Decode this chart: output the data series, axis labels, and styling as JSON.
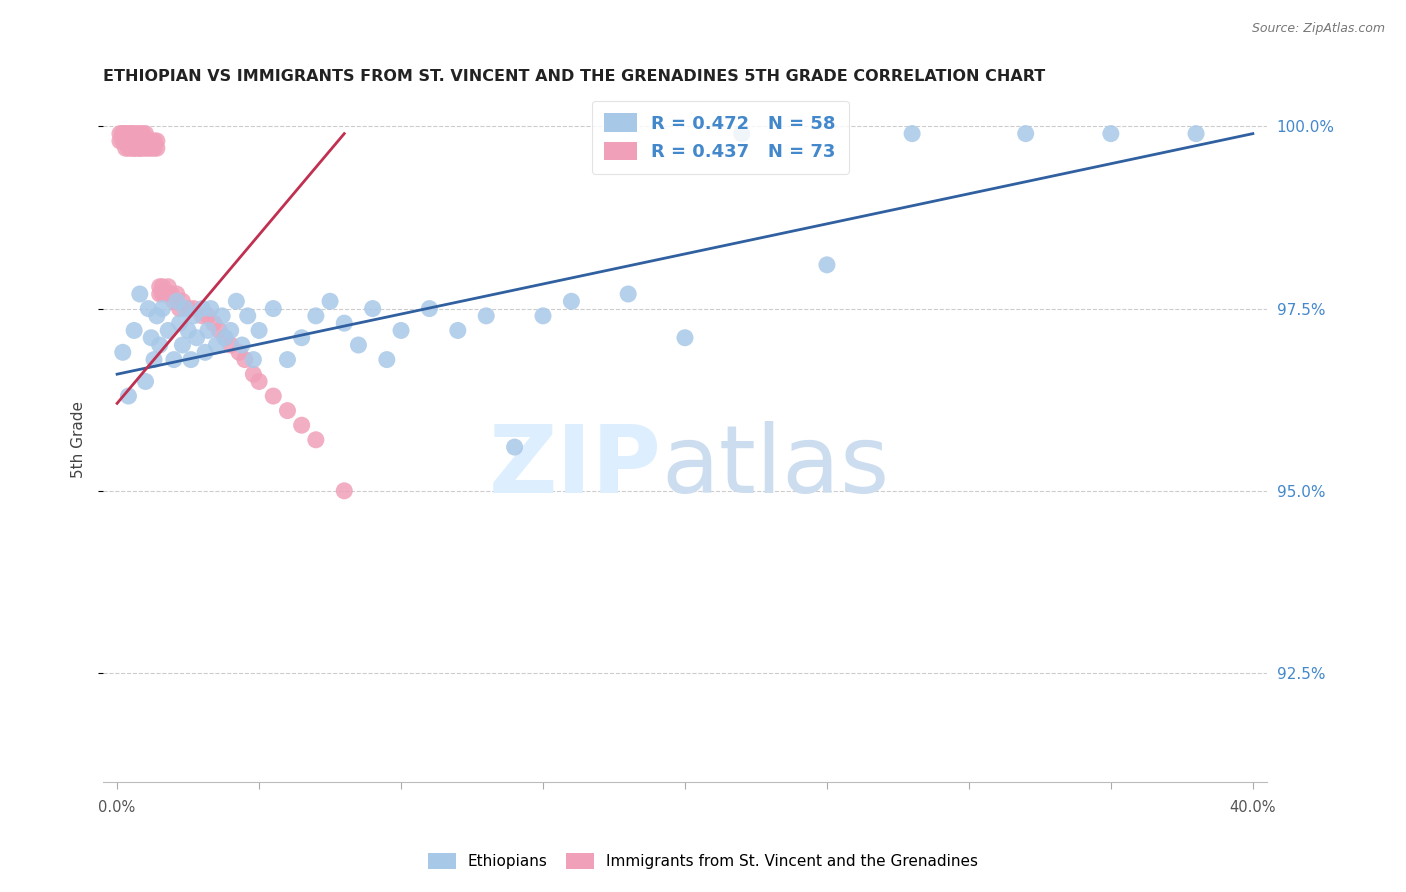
{
  "title": "ETHIOPIAN VS IMMIGRANTS FROM ST. VINCENT AND THE GRENADINES 5TH GRADE CORRELATION CHART",
  "source": "Source: ZipAtlas.com",
  "ylabel": "5th Grade",
  "xlim": [
    -0.005,
    0.405
  ],
  "ylim": [
    0.91,
    1.004
  ],
  "ytick_values": [
    0.925,
    0.95,
    0.975,
    1.0
  ],
  "ytick_labels": [
    "92.5%",
    "95.0%",
    "97.5%",
    "100.0%"
  ],
  "xtick_positions": [
    0.0,
    0.05,
    0.1,
    0.15,
    0.2,
    0.25,
    0.3,
    0.35,
    0.4
  ],
  "R_blue": 0.472,
  "N_blue": 58,
  "R_pink": 0.437,
  "N_pink": 73,
  "blue_color": "#a8c8e8",
  "pink_color": "#f0a0b8",
  "line_blue_color": "#3060a0",
  "line_pink_color": "#c03050",
  "blue_scatter_x": [
    0.002,
    0.004,
    0.006,
    0.008,
    0.01,
    0.011,
    0.012,
    0.013,
    0.014,
    0.015,
    0.016,
    0.018,
    0.02,
    0.021,
    0.022,
    0.023,
    0.024,
    0.025,
    0.026,
    0.027,
    0.028,
    0.03,
    0.031,
    0.032,
    0.033,
    0.035,
    0.037,
    0.038,
    0.04,
    0.042,
    0.044,
    0.046,
    0.048,
    0.05,
    0.055,
    0.06,
    0.065,
    0.07,
    0.075,
    0.08,
    0.085,
    0.09,
    0.095,
    0.1,
    0.11,
    0.12,
    0.13,
    0.14,
    0.15,
    0.16,
    0.18,
    0.2,
    0.22,
    0.25,
    0.28,
    0.32,
    0.35,
    0.38
  ],
  "blue_scatter_y": [
    0.969,
    0.963,
    0.972,
    0.977,
    0.965,
    0.975,
    0.971,
    0.968,
    0.974,
    0.97,
    0.975,
    0.972,
    0.968,
    0.976,
    0.973,
    0.97,
    0.975,
    0.972,
    0.968,
    0.974,
    0.971,
    0.975,
    0.969,
    0.972,
    0.975,
    0.97,
    0.974,
    0.971,
    0.972,
    0.976,
    0.97,
    0.974,
    0.968,
    0.972,
    0.975,
    0.968,
    0.971,
    0.974,
    0.976,
    0.973,
    0.97,
    0.975,
    0.968,
    0.972,
    0.975,
    0.972,
    0.974,
    0.956,
    0.974,
    0.976,
    0.977,
    0.971,
    0.999,
    0.981,
    0.999,
    0.999,
    0.999,
    0.999
  ],
  "pink_scatter_x": [
    0.001,
    0.001,
    0.002,
    0.002,
    0.002,
    0.003,
    0.003,
    0.003,
    0.003,
    0.003,
    0.004,
    0.004,
    0.004,
    0.004,
    0.005,
    0.005,
    0.005,
    0.005,
    0.005,
    0.006,
    0.006,
    0.006,
    0.006,
    0.007,
    0.007,
    0.007,
    0.007,
    0.008,
    0.008,
    0.008,
    0.008,
    0.009,
    0.009,
    0.009,
    0.01,
    0.01,
    0.01,
    0.011,
    0.011,
    0.012,
    0.012,
    0.013,
    0.013,
    0.014,
    0.014,
    0.015,
    0.015,
    0.016,
    0.016,
    0.017,
    0.018,
    0.019,
    0.02,
    0.021,
    0.022,
    0.023,
    0.025,
    0.027,
    0.03,
    0.032,
    0.034,
    0.036,
    0.038,
    0.04,
    0.043,
    0.045,
    0.048,
    0.05,
    0.055,
    0.06,
    0.065,
    0.07,
    0.08
  ],
  "pink_scatter_y": [
    0.999,
    0.998,
    0.999,
    0.998,
    0.999,
    0.998,
    0.999,
    0.999,
    0.998,
    0.997,
    0.998,
    0.999,
    0.997,
    0.998,
    0.999,
    0.998,
    0.997,
    0.999,
    0.998,
    0.997,
    0.999,
    0.998,
    0.997,
    0.998,
    0.999,
    0.997,
    0.998,
    0.997,
    0.998,
    0.999,
    0.997,
    0.998,
    0.997,
    0.999,
    0.998,
    0.997,
    0.999,
    0.997,
    0.998,
    0.997,
    0.998,
    0.997,
    0.998,
    0.997,
    0.998,
    0.977,
    0.978,
    0.977,
    0.978,
    0.977,
    0.978,
    0.977,
    0.976,
    0.977,
    0.975,
    0.976,
    0.975,
    0.975,
    0.974,
    0.974,
    0.973,
    0.972,
    0.971,
    0.97,
    0.969,
    0.968,
    0.966,
    0.965,
    0.963,
    0.961,
    0.959,
    0.957,
    0.95
  ],
  "blue_line_x": [
    0.0,
    0.4
  ],
  "blue_line_y": [
    0.966,
    0.999
  ],
  "pink_line_x": [
    0.0,
    0.08
  ],
  "pink_line_y": [
    0.962,
    0.999
  ]
}
